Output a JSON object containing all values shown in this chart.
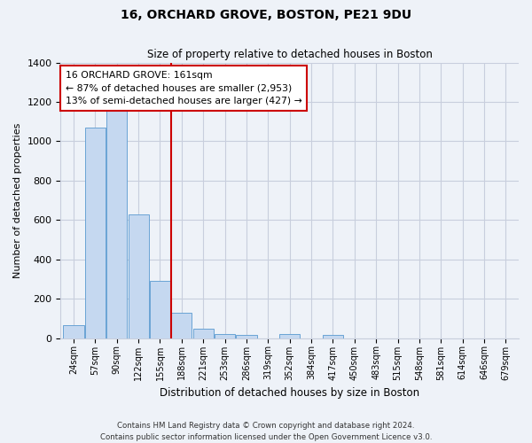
{
  "title": "16, ORCHARD GROVE, BOSTON, PE21 9DU",
  "subtitle": "Size of property relative to detached houses in Boston",
  "xlabel": "Distribution of detached houses by size in Boston",
  "ylabel": "Number of detached properties",
  "bar_labels": [
    "24sqm",
    "57sqm",
    "90sqm",
    "122sqm",
    "155sqm",
    "188sqm",
    "221sqm",
    "253sqm",
    "286sqm",
    "319sqm",
    "352sqm",
    "384sqm",
    "417sqm",
    "450sqm",
    "483sqm",
    "515sqm",
    "548sqm",
    "581sqm",
    "614sqm",
    "646sqm",
    "679sqm"
  ],
  "bar_values": [
    65,
    1070,
    1160,
    630,
    290,
    130,
    48,
    20,
    15,
    0,
    20,
    0,
    15,
    0,
    0,
    0,
    0,
    0,
    0,
    0,
    0
  ],
  "bar_color": "#c5d8f0",
  "bar_edge_color": "#6aa3d5",
  "vline_x": 4.5,
  "vline_color": "#cc0000",
  "ylim": [
    0,
    1400
  ],
  "yticks": [
    0,
    200,
    400,
    600,
    800,
    1000,
    1200,
    1400
  ],
  "annotation_title": "16 ORCHARD GROVE: 161sqm",
  "annotation_line1": "← 87% of detached houses are smaller (2,953)",
  "annotation_line2": "13% of semi-detached houses are larger (427) →",
  "annotation_box_color": "#ffffff",
  "annotation_box_edge": "#cc0000",
  "footer_line1": "Contains HM Land Registry data © Crown copyright and database right 2024.",
  "footer_line2": "Contains public sector information licensed under the Open Government Licence v3.0.",
  "bg_color": "#eef2f8",
  "grid_color": "#c8cedd"
}
